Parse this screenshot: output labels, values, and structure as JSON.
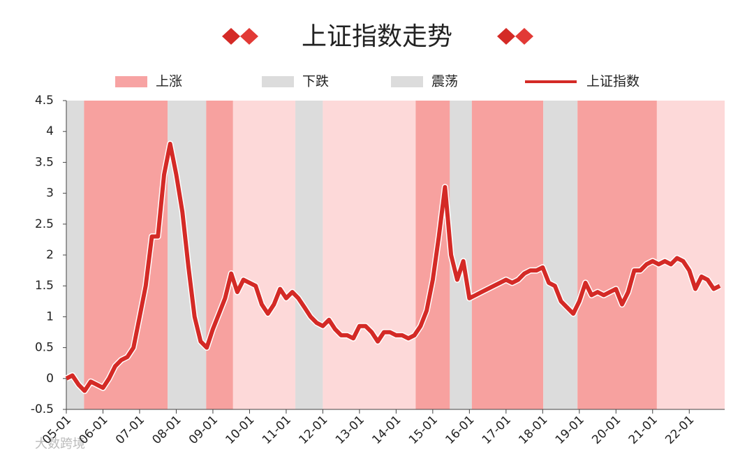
{
  "chart_data": {
    "type": "line",
    "title": "上证指数走势",
    "watermark": "大数跨境",
    "legend_items": [
      {
        "name": "上涨",
        "color": "#f7a3a3"
      },
      {
        "name": "下跌",
        "color": "#dcdcdc"
      },
      {
        "name": "震荡",
        "color": "#dcdcdc"
      }
    ],
    "regions": [
      {
        "from": 0,
        "to": 2.9,
        "color": "#dcdcdc"
      },
      {
        "from": 2.9,
        "to": 16.6,
        "color": "#f7a19f"
      },
      {
        "from": 16.6,
        "to": 22.9,
        "color": "#dcdcdc"
      },
      {
        "from": 22.9,
        "to": 27.3,
        "color": "#f7a19f"
      },
      {
        "from": 27.3,
        "to": 37.5,
        "color": "#fdd9d9"
      },
      {
        "from": 37.5,
        "to": 42.0,
        "color": "#dcdcdc"
      },
      {
        "from": 42.0,
        "to": 57.2,
        "color": "#fdd9d9"
      },
      {
        "from": 57.2,
        "to": 62.8,
        "color": "#f7a19f"
      },
      {
        "from": 62.8,
        "to": 66.4,
        "color": "#dcdcdc"
      },
      {
        "from": 66.4,
        "to": 78.1,
        "color": "#f7a19f"
      },
      {
        "from": 78.1,
        "to": 83.7,
        "color": "#dcdcdc"
      },
      {
        "from": 83.7,
        "to": 96.7,
        "color": "#f7a19f"
      },
      {
        "from": 96.7,
        "to": 107.8,
        "color": "#fdd9d9"
      }
    ],
    "categories": [
      "05-01",
      null,
      null,
      null,
      null,
      null,
      "06-01",
      null,
      null,
      null,
      null,
      null,
      "07-01",
      null,
      null,
      null,
      null,
      null,
      "08-01",
      null,
      null,
      null,
      null,
      null,
      "09-01",
      null,
      null,
      null,
      null,
      null,
      "10-01",
      null,
      null,
      null,
      null,
      null,
      "11-01",
      null,
      null,
      null,
      null,
      null,
      "12-01",
      null,
      null,
      null,
      null,
      null,
      "13-01",
      null,
      null,
      null,
      null,
      null,
      "14-01",
      null,
      null,
      null,
      null,
      null,
      "15-01",
      null,
      null,
      null,
      null,
      null,
      "16-01",
      null,
      null,
      null,
      null,
      null,
      "17-01",
      null,
      null,
      null,
      null,
      null,
      "18-01",
      null,
      null,
      null,
      null,
      null,
      "19-01",
      null,
      null,
      null,
      null,
      null,
      "20-01",
      null,
      null,
      null,
      null,
      null,
      "21-01",
      null,
      null,
      null,
      null,
      null,
      "22-01",
      null,
      null,
      null,
      null,
      null
    ],
    "series": [
      {
        "name": "上证指数",
        "color": "#d42a26",
        "values": [
          0.0,
          0.05,
          -0.1,
          -0.2,
          -0.05,
          -0.1,
          -0.15,
          0.0,
          0.2,
          0.3,
          0.35,
          0.5,
          1.0,
          1.5,
          2.3,
          2.3,
          3.3,
          3.8,
          3.3,
          2.7,
          1.8,
          1.0,
          0.6,
          0.5,
          0.8,
          1.05,
          1.3,
          1.7,
          1.4,
          1.6,
          1.55,
          1.5,
          1.2,
          1.05,
          1.2,
          1.45,
          1.3,
          1.4,
          1.3,
          1.15,
          1.0,
          0.9,
          0.85,
          0.95,
          0.8,
          0.7,
          0.7,
          0.65,
          0.85,
          0.85,
          0.75,
          0.6,
          0.75,
          0.75,
          0.7,
          0.7,
          0.65,
          0.7,
          0.85,
          1.1,
          1.6,
          2.3,
          3.1,
          2.0,
          1.6,
          1.9,
          1.3,
          1.35,
          1.4,
          1.45,
          1.5,
          1.55,
          1.6,
          1.55,
          1.6,
          1.7,
          1.75,
          1.75,
          1.8,
          1.55,
          1.5,
          1.25,
          1.15,
          1.05,
          1.25,
          1.55,
          1.35,
          1.4,
          1.35,
          1.4,
          1.45,
          1.2,
          1.4,
          1.75,
          1.75,
          1.85,
          1.9,
          1.85,
          1.9,
          1.85,
          1.95,
          1.9,
          1.75,
          1.45,
          1.65,
          1.6,
          1.45,
          1.5
        ]
      }
    ],
    "ylim": [
      -0.5,
      4.5
    ],
    "yticks": [
      -0.5,
      0,
      0.5,
      1,
      1.5,
      2,
      2.5,
      3,
      3.5,
      4,
      4.5
    ]
  }
}
